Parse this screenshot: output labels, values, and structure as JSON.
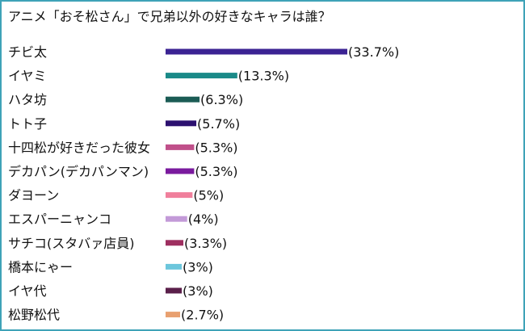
{
  "chart_data": {
    "type": "bar",
    "orientation": "horizontal",
    "title": "アニメ「おそ松さん」で兄弟以外の好きなキャラは誰？",
    "xlabel": "",
    "ylabel": "",
    "grid": false,
    "legend": "none",
    "categories": [
      "チビ太",
      "イヤミ",
      "ハタ坊",
      "トト子",
      "十四松が好きだった彼女",
      "デカパン(デカパンマン)",
      "ダヨーン",
      "エスパーニャンコ",
      "サチコ(スタバァ店員)",
      "橋本にゃー",
      "イヤ代",
      "松野松代"
    ],
    "values": [
      33.7,
      13.3,
      6.3,
      5.7,
      5.3,
      5.3,
      5,
      4,
      3.3,
      3,
      3,
      2.7
    ],
    "value_labels": [
      "(33.7%)",
      "(13.3%)",
      "(6.3%)",
      "(5.7%)",
      "(5.3%)",
      "(5.3%)",
      "(5%)",
      "(4%)",
      "(3.3%)",
      "(3%)",
      "(3%)",
      "(2.7%)"
    ],
    "colors": [
      "#3b2393",
      "#1a8a88",
      "#1b5c55",
      "#2c1070",
      "#c0508a",
      "#7a1a9e",
      "#f07f9c",
      "#c39ad8",
      "#9e2f60",
      "#6cc6dc",
      "#5a1f4a",
      "#e8a070"
    ],
    "xlim": [
      0,
      33.7
    ]
  }
}
